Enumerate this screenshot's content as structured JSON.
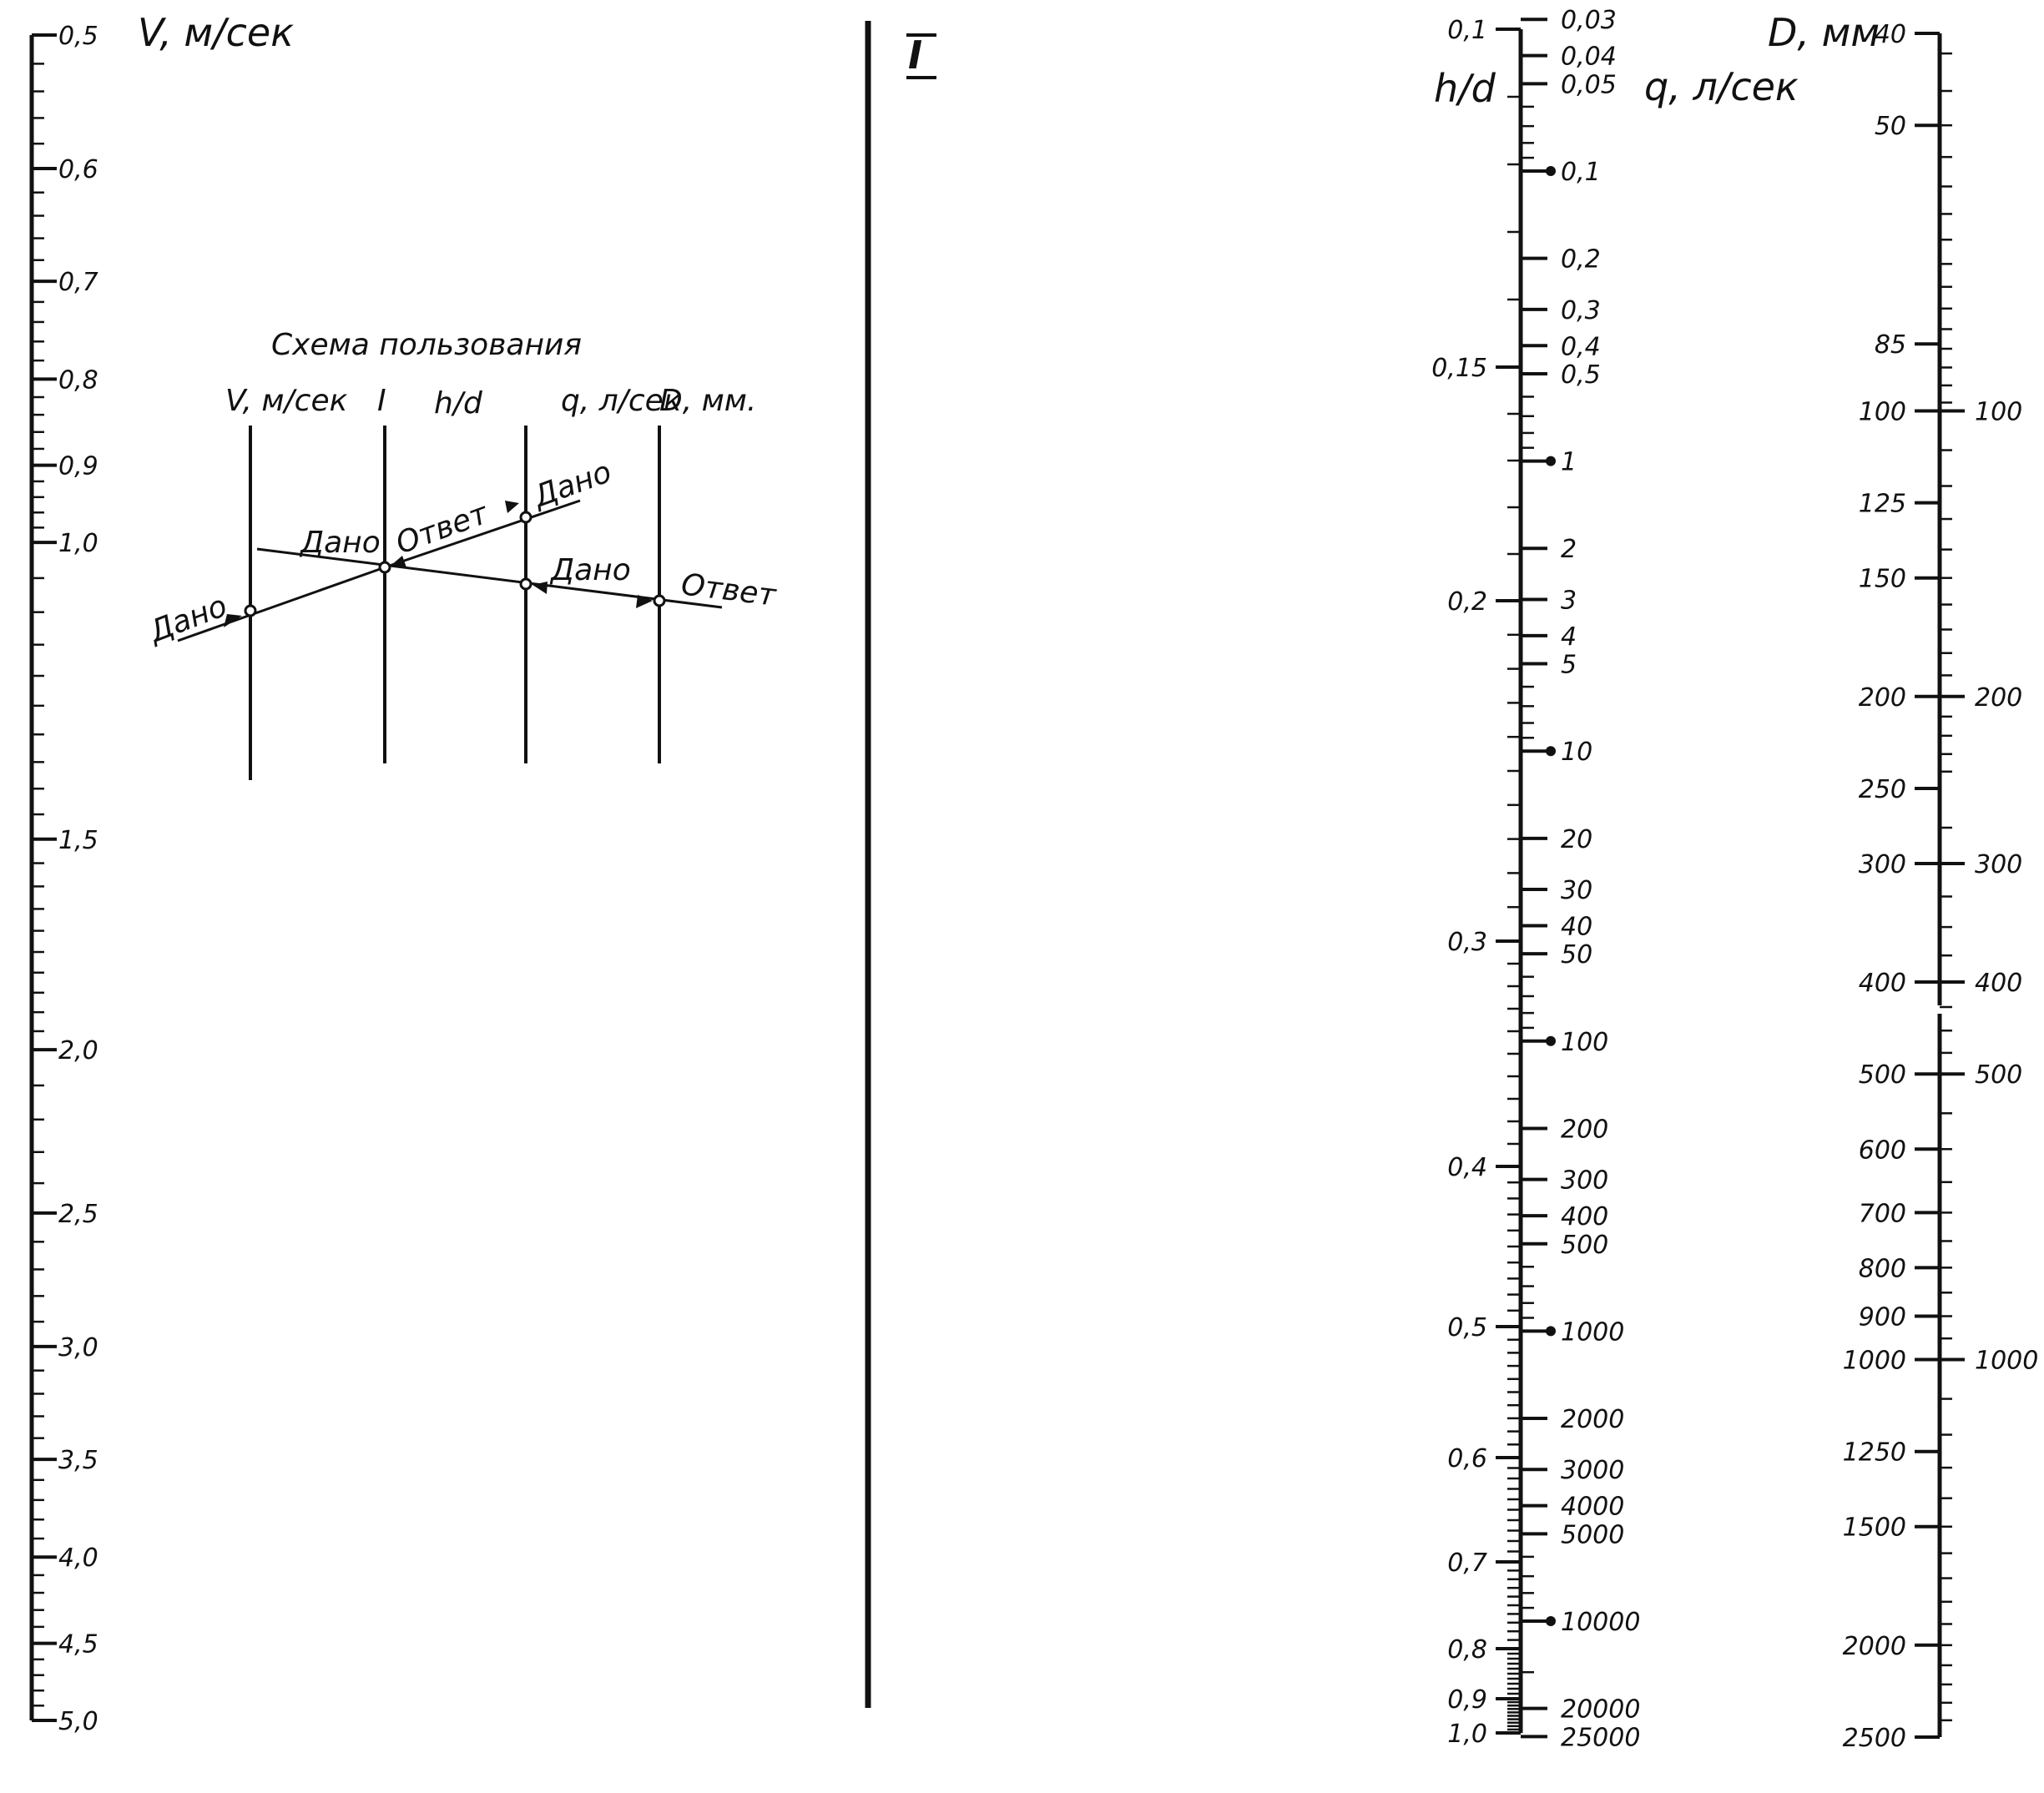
{
  "chart_data": {
    "type": "nomogram",
    "axes": [
      {
        "id": "velocity",
        "title": "V, м/сек",
        "scale": "log",
        "range": [
          0.5,
          5.0
        ],
        "labels": [
          "0,5",
          "0,6",
          "0,7",
          "0,8",
          "0,9",
          "1,0",
          "1,5",
          "2,0",
          "2,5",
          "3,0",
          "3,5",
          "4,0",
          "4,5",
          "5,0"
        ]
      },
      {
        "id": "turning",
        "title": "I",
        "scale": "none",
        "labels": []
      },
      {
        "id": "h_over_d",
        "title": "h/d",
        "scale": "nonlinear",
        "range": [
          0.1,
          1.0
        ],
        "labels": [
          "0,1",
          "0,15",
          "0,2",
          "0,3",
          "0,4",
          "0,5",
          "0,6",
          "0,7",
          "0,8",
          "0,9",
          "1,0"
        ]
      },
      {
        "id": "flow",
        "title": "q, л/сек",
        "scale": "log",
        "range": [
          0.03,
          25000
        ],
        "labels": [
          "0,03",
          "0,04",
          "0,05",
          "0,1",
          "0,2",
          "0,3",
          "0,4",
          "0,5",
          "1",
          "2",
          "3",
          "4",
          "5",
          "10",
          "20",
          "30",
          "40",
          "50",
          "100",
          "200",
          "300",
          "400",
          "500",
          "1000",
          "2000",
          "3000",
          "4000",
          "5000",
          "10000",
          "20000",
          "25000"
        ]
      },
      {
        "id": "diameter",
        "title": "D, мм",
        "scale": "log",
        "range": [
          40,
          2500
        ],
        "left_labels": [
          "40",
          "50",
          "85",
          "100",
          "125",
          "150",
          "200",
          "250",
          "300",
          "400",
          "500",
          "600",
          "700",
          "800",
          "900",
          "1000",
          "1250",
          "1500",
          "2000",
          "2500"
        ],
        "right_labels": [
          "100",
          "200",
          "300",
          "400",
          "500",
          "1000"
        ]
      }
    ],
    "usage_scheme": {
      "title": "Схема пользования",
      "column_labels": [
        "V, м/сек",
        "I",
        "h/d",
        "q, л/сек",
        "D, мм."
      ],
      "annotations": [
        "Дано",
        "Дано",
        "Ответ",
        "Дано",
        "Дано",
        "Ответ"
      ]
    }
  }
}
